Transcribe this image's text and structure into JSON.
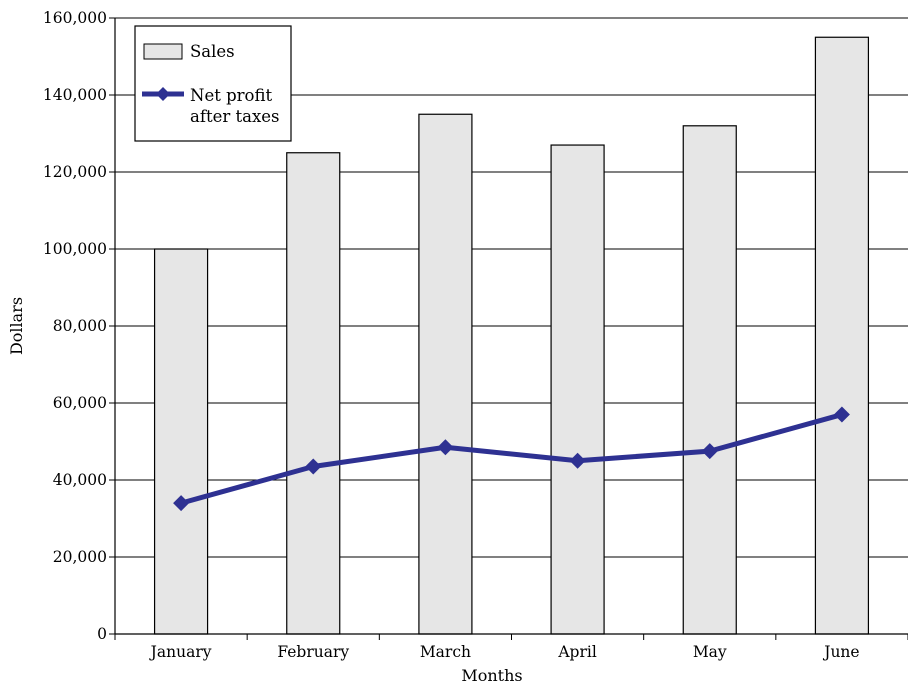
{
  "chart_data": {
    "type": "bar",
    "categories": [
      "January",
      "February",
      "March",
      "April",
      "May",
      "June"
    ],
    "series": [
      {
        "name": "Sales",
        "kind": "bar",
        "values": [
          100000,
          125000,
          135000,
          127000,
          132000,
          155000
        ],
        "color": "#e6e6e6"
      },
      {
        "name": "Net profit after taxes",
        "kind": "line",
        "marker": "diamond",
        "values": [
          34000,
          43500,
          48500,
          45000,
          47500,
          57000
        ],
        "color": "#2e3192"
      }
    ],
    "xlabel": "Months",
    "ylabel": "Dollars",
    "ylim": [
      0,
      160000
    ],
    "yticks": [
      {
        "value": 0,
        "label": "0"
      },
      {
        "value": 20000,
        "label": "20,000"
      },
      {
        "value": 40000,
        "label": "40,000"
      },
      {
        "value": 60000,
        "label": "60,000"
      },
      {
        "value": 80000,
        "label": "80,000"
      },
      {
        "value": 100000,
        "label": "100,000"
      },
      {
        "value": 120000,
        "label": "120,000"
      },
      {
        "value": 140000,
        "label": "140,000"
      },
      {
        "value": 160000,
        "label": "160,000"
      }
    ],
    "grid": true,
    "legend": {
      "position": "top-left",
      "entries": [
        {
          "label": "Sales",
          "symbol": "bar"
        },
        {
          "label_lines": [
            "Net profit",
            "after taxes"
          ],
          "symbol": "line-diamond"
        }
      ]
    }
  }
}
